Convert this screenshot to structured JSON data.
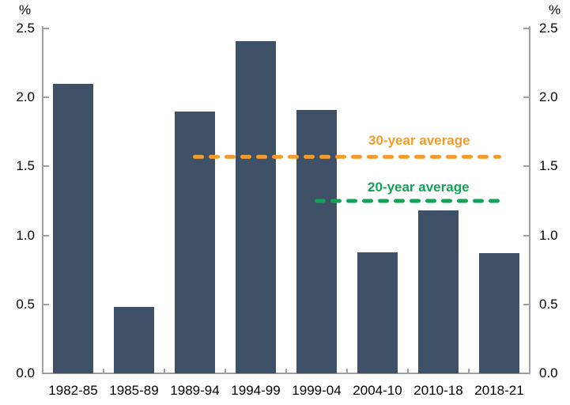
{
  "chart_data": {
    "type": "bar",
    "title": "",
    "y_unit_left": "%",
    "y_unit_right": "%",
    "categories": [
      "1982-85",
      "1985-89",
      "1989-94",
      "1994-99",
      "1999-04",
      "2004-10",
      "2010-18",
      "2018-21"
    ],
    "values": [
      2.1,
      0.48,
      1.9,
      2.41,
      1.91,
      0.88,
      1.18,
      0.87
    ],
    "ylim": [
      0,
      2.5
    ],
    "yticks": [
      0.0,
      0.5,
      1.0,
      1.5,
      2.0,
      2.5
    ],
    "grid": false,
    "bar_color": "#3e5166",
    "axis_color": "#a0a0a0",
    "reference_lines": [
      {
        "label": "30-year average",
        "value": 1.57,
        "color": "#f39c2d",
        "from_category": "1989-94",
        "to_category": "2018-21"
      },
      {
        "label": "20-year average",
        "value": 1.25,
        "color": "#12a357",
        "from_category": "1999-04",
        "to_category": "2018-21"
      }
    ]
  }
}
